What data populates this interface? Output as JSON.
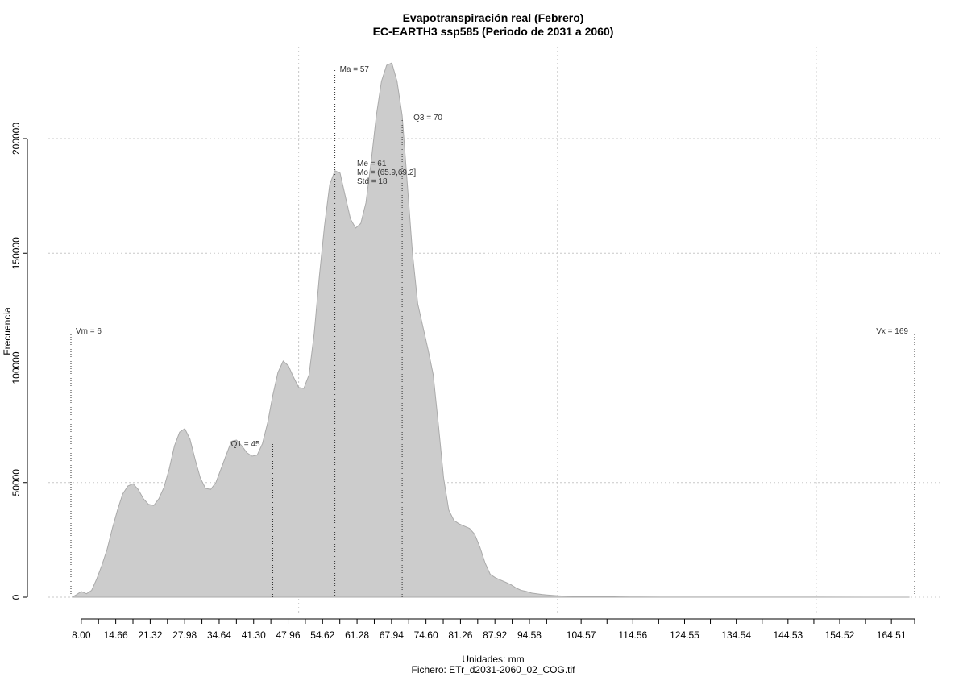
{
  "chart_data": {
    "type": "area",
    "title": "Evapotranspiración real (Febrero)",
    "subtitle": "EC-EARTH3 ssp585 (Periodo de 2031 a 2060)",
    "xlabel": "Unidades: mm",
    "ylabel": "Frecuencia",
    "caption": "Fichero: ETr_d2031-2060_02_COG.tif",
    "xlim": [
      6,
      169
    ],
    "ylim": [
      0,
      230000
    ],
    "grid": true,
    "fill_color": "#cccccc",
    "line_color": "#aaaaaa",
    "x_ticks": [
      8,
      11.33,
      14.66,
      17.99,
      21.32,
      24.65,
      27.98,
      31.31,
      34.64,
      37.97,
      41.3,
      44.63,
      47.96,
      51.29,
      54.62,
      57.95,
      61.28,
      64.61,
      67.94,
      71.27,
      74.6,
      77.93,
      81.26,
      84.59,
      87.92,
      91.25,
      94.58,
      97.91,
      104.57,
      109.57,
      114.56,
      119.55,
      124.55,
      129.54,
      134.54,
      139.54,
      144.53,
      149.53,
      154.52,
      159.52,
      164.51,
      169.0
    ],
    "x_tick_labels": [
      "8.00",
      "14.66",
      "21.32",
      "27.98",
      "34.64",
      "41.30",
      "47.96",
      "54.62",
      "61.28",
      "67.94",
      "74.60",
      "81.26",
      "87.92",
      "94.58",
      "104.57",
      "114.56",
      "124.55",
      "134.54",
      "144.53",
      "154.52",
      "164.51"
    ],
    "x_tick_label_values": [
      8,
      14.66,
      21.32,
      27.98,
      34.64,
      41.3,
      47.96,
      54.62,
      61.28,
      67.94,
      74.6,
      81.26,
      87.92,
      94.58,
      104.57,
      114.56,
      124.55,
      134.54,
      144.53,
      154.52,
      164.51
    ],
    "y_ticks": [
      0,
      50000,
      100000,
      150000,
      200000
    ],
    "y_tick_labels": [
      "0",
      "50000",
      "100000",
      "150000",
      "200000"
    ],
    "x_grid": [
      50,
      100,
      150
    ],
    "y_grid": [
      0,
      50000,
      100000,
      150000,
      200000
    ],
    "x": [
      6.2,
      7,
      8,
      9,
      10,
      11,
      12,
      13,
      14,
      15,
      16,
      17,
      18,
      19,
      20,
      21,
      22,
      23,
      24,
      25,
      26,
      27,
      28,
      29,
      30,
      31,
      32,
      33,
      34,
      35,
      36,
      37,
      38,
      39,
      40,
      41,
      42,
      43,
      44,
      45,
      46,
      47,
      48,
      49,
      50,
      51,
      52,
      53,
      54,
      55,
      56,
      57,
      58,
      59,
      60,
      61,
      62,
      63,
      64,
      65,
      66,
      67,
      68,
      69,
      70,
      71,
      72,
      73,
      74,
      75,
      76,
      77,
      78,
      79,
      80,
      81,
      82,
      83,
      84,
      85,
      86,
      87,
      88,
      89,
      90,
      91,
      92,
      93,
      94,
      95,
      96,
      97,
      98,
      99,
      100,
      102,
      104,
      106,
      108,
      110,
      112,
      114,
      116,
      120,
      130,
      140,
      150,
      160,
      168
    ],
    "y": [
      0,
      1000,
      2500,
      1500,
      3000,
      8000,
      14000,
      21000,
      30000,
      38000,
      45000,
      48500,
      49500,
      47000,
      43000,
      40500,
      40000,
      43000,
      48000,
      56000,
      66000,
      72000,
      73500,
      69000,
      60000,
      52000,
      47500,
      47000,
      50000,
      56000,
      62000,
      68000,
      68500,
      66000,
      63000,
      61500,
      62000,
      67000,
      76000,
      88000,
      98000,
      103000,
      101000,
      96000,
      91500,
      91000,
      97000,
      115000,
      140000,
      162000,
      180000,
      186000,
      185000,
      175000,
      165000,
      161000,
      163000,
      172000,
      190000,
      210000,
      225000,
      232000,
      233000,
      225000,
      210000,
      180000,
      150000,
      128000,
      118000,
      108000,
      97000,
      75000,
      52000,
      38000,
      33500,
      32000,
      31000,
      30000,
      27500,
      22000,
      15000,
      10000,
      8500,
      7500,
      6500,
      5500,
      4000,
      3000,
      2500,
      1800,
      1500,
      1200,
      1000,
      800,
      600,
      400,
      300,
      200,
      300,
      200,
      150,
      100,
      80,
      50,
      40,
      30,
      20,
      10,
      0
    ],
    "stats_lines": [
      {
        "label": "Vm = 6",
        "x": 6
      },
      {
        "label": "Q1 = 45",
        "x": 45
      },
      {
        "label": "Ma = 57",
        "x": 57
      },
      {
        "label": "Q3 = 70",
        "x": 70
      },
      {
        "label": "Vx = 169",
        "x": 169
      }
    ],
    "stats_block": [
      "Me = 61",
      "Mo = (65.9,69.2]",
      "Std = 18"
    ]
  }
}
